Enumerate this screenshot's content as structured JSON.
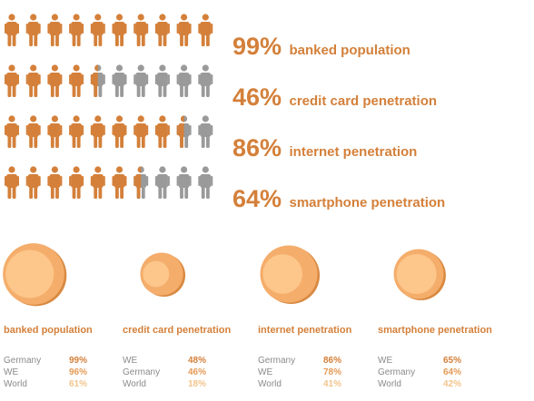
{
  "colors": {
    "orange": "#d4803a",
    "orange_mid": "#e59a55",
    "orange_light": "#f2c48c",
    "grey_person": "#9a9a9a",
    "label_grey": "#8a8a8a",
    "bubble_outer": "#f4ad6b",
    "bubble_ring": "#d98a42",
    "bubble_inner": "#fdc68a"
  },
  "icons": {
    "person": "person-icon"
  },
  "chart_data": [
    {
      "type": "pictogram",
      "icons_per_row": 10,
      "rows": [
        {
          "value": "99%",
          "label": "banked population",
          "filled_units": 9.9
        },
        {
          "value": "46%",
          "label": "credit card penetration",
          "filled_units": 4.6
        },
        {
          "value": "86%",
          "label": "internet penetration",
          "filled_units": 8.6
        },
        {
          "value": "64%",
          "label": "smartphone penetration",
          "filled_units": 6.4
        }
      ]
    },
    {
      "type": "bubble",
      "panels": [
        {
          "title": "banked population",
          "rows": [
            {
              "region": "Germany",
              "value": "99%",
              "pct": 99
            },
            {
              "region": "WE",
              "value": "96%",
              "pct": 96
            },
            {
              "region": "World",
              "value": "61%",
              "pct": 61
            }
          ]
        },
        {
          "title": "credit card penetration",
          "rows": [
            {
              "region": "WE",
              "value": "48%",
              "pct": 48
            },
            {
              "region": "Germany",
              "value": "46%",
              "pct": 46
            },
            {
              "region": "World",
              "value": "18%",
              "pct": 18
            }
          ]
        },
        {
          "title": "internet penetration",
          "rows": [
            {
              "region": "Germany",
              "value": "86%",
              "pct": 86
            },
            {
              "region": "WE",
              "value": "78%",
              "pct": 78
            },
            {
              "region": "World",
              "value": "41%",
              "pct": 41
            }
          ]
        },
        {
          "title": "smartphone penetration",
          "rows": [
            {
              "region": "WE",
              "value": "65%",
              "pct": 65
            },
            {
              "region": "Germany",
              "value": "64%",
              "pct": 64
            },
            {
              "region": "World",
              "value": "42%",
              "pct": 42
            }
          ]
        }
      ]
    }
  ]
}
